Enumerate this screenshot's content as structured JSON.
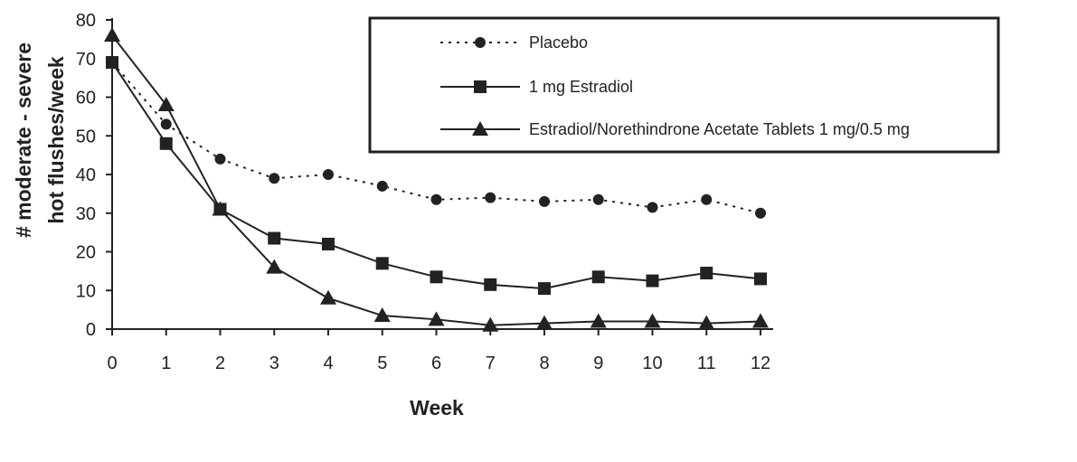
{
  "chart_data": {
    "type": "line",
    "xlabel": "Week",
    "ylabel": "# moderate - severe hot flushes/week",
    "ylabel_lines": [
      "# moderate - severe",
      "hot flushes/week"
    ],
    "xlim": [
      0,
      12
    ],
    "ylim": [
      0,
      80
    ],
    "x_ticks": [
      "0",
      "1",
      "2",
      "3",
      "4",
      "5",
      "6",
      "7",
      "8",
      "9",
      "10",
      "11",
      "12"
    ],
    "y_ticks": [
      "0",
      "10",
      "20",
      "30",
      "40",
      "50",
      "60",
      "70",
      "80"
    ],
    "x": [
      0,
      1,
      2,
      3,
      4,
      5,
      6,
      7,
      8,
      9,
      10,
      11,
      12
    ],
    "legend_position": "top-right",
    "grid": false,
    "series": [
      {
        "name": "Placebo",
        "marker": "circle",
        "line": "dotted",
        "color": "#222222",
        "values": [
          69,
          53,
          44,
          39,
          40,
          37,
          33.5,
          34,
          33,
          33.5,
          31.5,
          33.5,
          30
        ]
      },
      {
        "name": "1 mg Estradiol",
        "marker": "square",
        "line": "solid",
        "color": "#222222",
        "values": [
          69,
          48,
          31,
          23.5,
          22,
          17,
          13.5,
          11.5,
          10.5,
          13.5,
          12.5,
          14.5,
          13
        ]
      },
      {
        "name": "Estradiol/Norethindrone Acetate Tablets 1 mg/0.5 mg",
        "marker": "triangle",
        "line": "solid",
        "color": "#222222",
        "values": [
          76,
          58,
          31,
          16,
          8,
          3.5,
          2.5,
          1,
          1.5,
          2,
          2,
          1.5,
          2
        ]
      }
    ]
  }
}
